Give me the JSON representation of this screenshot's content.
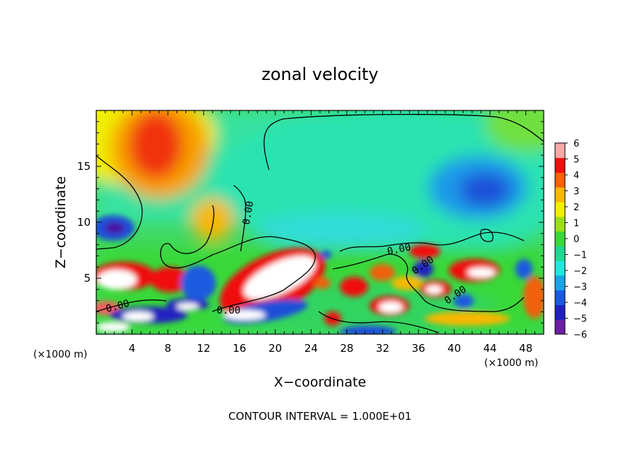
{
  "chart_data": {
    "type": "heatmap",
    "title": "zonal velocity",
    "xlabel": "X−coordinate",
    "ylabel": "Z−coordinate",
    "x_unit_left": "(×1000 m)",
    "x_unit_right": "(×1000 m)",
    "xlim": [
      0,
      50
    ],
    "ylim": [
      0,
      20
    ],
    "x_ticks": [
      "4",
      "8",
      "12",
      "16",
      "20",
      "24",
      "28",
      "32",
      "36",
      "40",
      "44",
      "48"
    ],
    "y_ticks": [
      "5",
      "10",
      "15"
    ],
    "contour_label": "0.00",
    "contour_interval_text": "CONTOUR INTERVAL = 1.000E+01",
    "colorbar": {
      "levels": [
        -6,
        -5,
        -4,
        -3,
        -2,
        -1,
        0,
        1,
        2,
        3,
        4,
        5,
        6
      ],
      "labels": [
        "6",
        "5",
        "4",
        "3",
        "2",
        "1",
        "0",
        "−1",
        "−2",
        "−3",
        "−4",
        "−5",
        "−6"
      ],
      "colors": [
        "#6a1fa6",
        "#2020c0",
        "#1a5ae0",
        "#19a4e8",
        "#22e8e0",
        "#20d890",
        "#38d838",
        "#9ae018",
        "#f0f000",
        "#f8b800",
        "#f86000",
        "#f01010",
        "#f8a8a8"
      ]
    },
    "features": [
      {
        "kind": "maximum",
        "x": 7,
        "z": 16.5,
        "value": 4
      },
      {
        "kind": "minimum",
        "x": 43,
        "z": 12.8,
        "value": -4
      },
      {
        "kind": "minimum",
        "x": 2,
        "z": 9.7,
        "value": -6
      },
      {
        "kind": "maximum",
        "x": 21.5,
        "z": 5.2,
        "value": 6
      },
      {
        "kind": "maximum",
        "x": 2.5,
        "z": 4.3,
        "value": 6
      },
      {
        "kind": "maximum",
        "x": 33.2,
        "z": 2.3,
        "value": 6
      }
    ],
    "grid": false
  }
}
